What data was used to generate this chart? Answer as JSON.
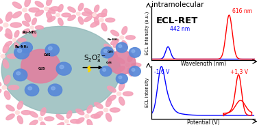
{
  "title_line1": "intramolecular",
  "title_line2": "ECL-RET",
  "top_chart": {
    "blue_peak_label": "442 nm",
    "red_peak_label": "616 nm",
    "ylabel": "ECL intensity (a.u.)",
    "xlabel": "Wavelength (nm)"
  },
  "bottom_chart": {
    "blue_label": "-1.6 V",
    "red_label": "+1.3 V",
    "ylabel": "ECL intensity",
    "xlabel": "Potential (V)"
  },
  "flower_color": "#f4a0b8",
  "flower_center_color": "#ffdddd",
  "cluster_pink": "#e080a0",
  "sphere_blue": "#5888d8",
  "sphere_highlight": "#90b8f0",
  "ellipse_color": "#90b8b8",
  "background_color": "#ffffff"
}
